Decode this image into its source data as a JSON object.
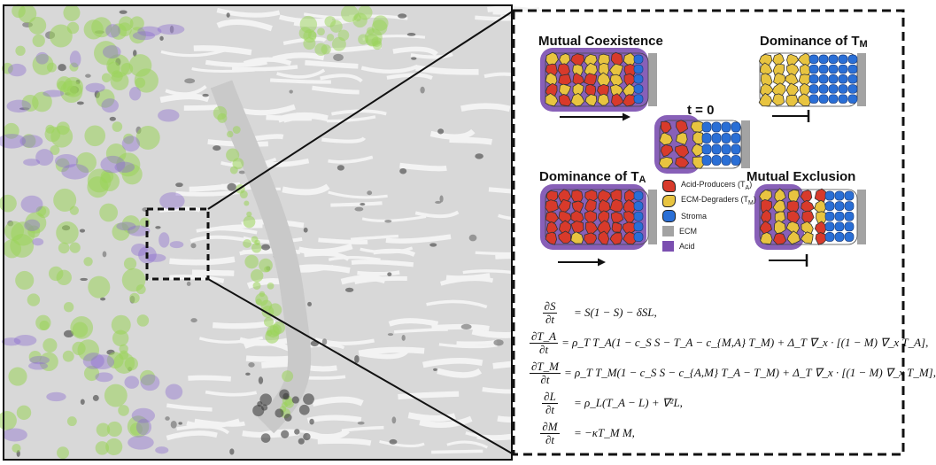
{
  "panels": {
    "mutual_coexistence": {
      "title": "Mutual Coexistence"
    },
    "dominance_tm": {
      "title": "Dominance of T",
      "sub": "M"
    },
    "t0": {
      "title": "t = 0"
    },
    "dominance_ta": {
      "title": "Dominance of T",
      "sub": "A"
    },
    "mutual_exclusion": {
      "title": "Mutual Exclusion"
    }
  },
  "legend": [
    {
      "label": "Acid-Producers (T",
      "sub": "A",
      "tail": ")",
      "color": "#d83a2b",
      "shape": "cell"
    },
    {
      "label": "ECM-Degraders (T",
      "sub": "M",
      "tail": ")",
      "color": "#e8c440",
      "shape": "cell"
    },
    {
      "label": "Stroma",
      "sub": "",
      "tail": "",
      "color": "#2a6fd6",
      "shape": "round"
    },
    {
      "label": "ECM",
      "sub": "",
      "tail": "",
      "color": "#a3a3a3",
      "shape": "square"
    },
    {
      "label": "Acid",
      "sub": "",
      "tail": "",
      "color": "#7b4fb0",
      "shape": "square"
    }
  ],
  "equations": [
    {
      "num": "∂S",
      "den": "∂t",
      "rhs": "= S(1 − S) − δSL,"
    },
    {
      "num": "∂T_A",
      "den": "∂t",
      "rhs": "= ρ_T T_A(1 − c_S S − T_A − c_{M,A} T_M) + Δ_T ∇_x · [(1 − M) ∇_x T_A],"
    },
    {
      "num": "∂T_M",
      "den": "∂t",
      "rhs": "= ρ_T T_M(1 − c_S S − c_{A,M} T_A − T_M) + Δ_T ∇_x · [(1 − M) ∇_x T_M],"
    },
    {
      "num": "∂L",
      "den": "∂t",
      "rhs": "= ρ_L(T_A − L) + ∇²L,"
    },
    {
      "num": "∂M",
      "den": "∂t",
      "rhs": "= −κT_M M,"
    }
  ],
  "colors": {
    "acid_producer": "#d83a2b",
    "ecm_degrader": "#e8c440",
    "stroma": "#2a6fd6",
    "ecm": "#a3a3a3",
    "acid": "#7b4fb0",
    "tissue_green": "#9ad35a",
    "tissue_purple": "#8a6ad0"
  }
}
